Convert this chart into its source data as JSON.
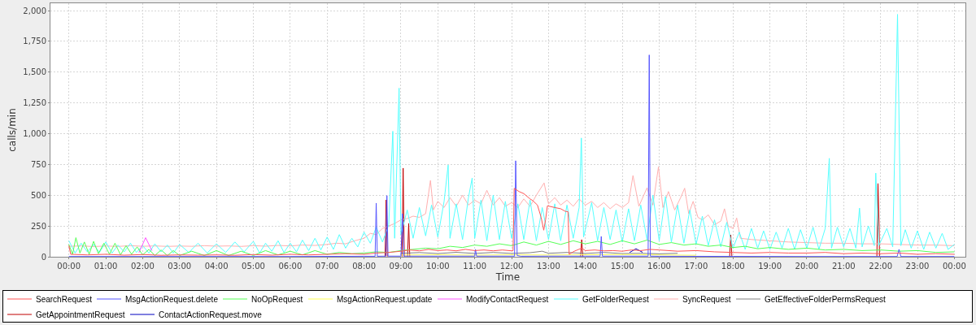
{
  "chart_data": {
    "type": "line",
    "xlabel": "Time",
    "ylabel": "calls/min",
    "xlim": [
      -0.5,
      24.3
    ],
    "xticks": [
      {
        "value": 0,
        "label": "00:00"
      },
      {
        "value": 1,
        "label": "01:00"
      },
      {
        "value": 2,
        "label": "02:00"
      },
      {
        "value": 3,
        "label": "03:00"
      },
      {
        "value": 4,
        "label": "04:00"
      },
      {
        "value": 5,
        "label": "05:00"
      },
      {
        "value": 6,
        "label": "06:00"
      },
      {
        "value": 7,
        "label": "07:00"
      },
      {
        "value": 8,
        "label": "08:00"
      },
      {
        "value": 9,
        "label": "09:00"
      },
      {
        "value": 10,
        "label": "10:00"
      },
      {
        "value": 11,
        "label": "11:00"
      },
      {
        "value": 12,
        "label": "12:00"
      },
      {
        "value": 13,
        "label": "13:00"
      },
      {
        "value": 14,
        "label": "14:00"
      },
      {
        "value": 15,
        "label": "15:00"
      },
      {
        "value": 16,
        "label": "16:00"
      },
      {
        "value": 17,
        "label": "17:00"
      },
      {
        "value": 18,
        "label": "18:00"
      },
      {
        "value": 19,
        "label": "19:00"
      },
      {
        "value": 20,
        "label": "20:00"
      },
      {
        "value": 21,
        "label": "21:00"
      },
      {
        "value": 22,
        "label": "22:00"
      },
      {
        "value": 23,
        "label": "23:00"
      },
      {
        "value": 24,
        "label": "00:00"
      }
    ],
    "ylim": [
      0,
      2060
    ],
    "yticks": [
      0,
      250,
      500,
      750,
      {
        "value": 1000,
        "label": "1,000"
      },
      {
        "value": 1250,
        "label": "1,250"
      },
      {
        "value": 1500,
        "label": "1,500"
      },
      {
        "value": 1750,
        "label": "1,750"
      },
      {
        "value": 2000,
        "label": "2,000"
      }
    ],
    "grid": true,
    "legend": "bottom",
    "series": [
      {
        "name": "SearchRequest",
        "color": "#ff5555",
        "x": [
          0,
          0.05,
          0.5,
          1,
          1.5,
          2,
          2.5,
          3,
          3.5,
          4,
          4.5,
          5,
          5.5,
          6,
          6.5,
          7,
          7.5,
          8,
          8.33,
          8.67,
          9,
          9.25,
          9.5,
          9.75,
          10,
          10.25,
          10.5,
          10.75,
          11,
          11.25,
          11.5,
          11.75,
          12,
          12.04,
          12.07,
          12.2,
          12.33,
          12.5,
          12.57,
          12.7,
          12.8,
          12.87,
          12.92,
          12.97,
          13.17,
          13.33,
          13.45,
          13.53,
          13.56,
          13.7,
          13.9,
          14,
          14.25,
          14.5,
          14.75,
          15,
          15.25,
          15.5,
          15.75,
          16,
          16.5,
          17,
          17.5,
          18,
          18.5,
          19,
          19.5,
          20,
          20.5,
          21,
          21.5,
          22,
          22.5,
          23,
          23.5,
          24
        ],
        "values": [
          90,
          20,
          15,
          20,
          13,
          18,
          12,
          15,
          13,
          15,
          12,
          18,
          13,
          20,
          15,
          20,
          25,
          20,
          30,
          35,
          45,
          55,
          48,
          60,
          50,
          55,
          48,
          60,
          50,
          55,
          48,
          55,
          48,
          50,
          556,
          530,
          513,
          470,
          457,
          420,
          320,
          216,
          300,
          414,
          400,
          390,
          370,
          365,
          20,
          45,
          70,
          50,
          55,
          48,
          50,
          45,
          55,
          50,
          60,
          55,
          45,
          50,
          40,
          35,
          30,
          35,
          30,
          30,
          35,
          25,
          30,
          25,
          30,
          20,
          25,
          20
        ]
      },
      {
        "name": "MsgActionRequest.delete",
        "color": "#5555ff",
        "x": [
          0,
          2,
          4,
          6,
          8,
          8.3,
          8.33,
          8.36,
          8.59,
          8.62,
          8.65,
          9,
          9.04,
          9.08,
          10,
          11,
          11.02,
          11.05,
          12,
          12.08,
          12.11,
          12.15,
          12.25,
          13,
          14,
          14.4,
          14.43,
          14.46,
          15,
          15.7,
          15.73,
          15.76,
          16,
          18,
          20,
          22.45,
          22.5,
          22.55,
          24
        ],
        "values": [
          2,
          2,
          2,
          2,
          4,
          4,
          436,
          4,
          5,
          497,
          5,
          5,
          350,
          5,
          5,
          5,
          60,
          5,
          5,
          5,
          780,
          10,
          4,
          5,
          5,
          5,
          165,
          5,
          5,
          5,
          1640,
          5,
          4,
          3,
          2,
          2,
          60,
          2,
          2
        ]
      },
      {
        "name": "NoOpRequest",
        "color": "#55ff55",
        "x": [
          0,
          0.1,
          0.19,
          0.3,
          0.42,
          0.55,
          0.67,
          0.8,
          0.95,
          1.1,
          1.25,
          1.4,
          1.55,
          1.7,
          1.85,
          2,
          2.17,
          2.33,
          2.5,
          2.67,
          2.83,
          3,
          3.33,
          3.67,
          4,
          4.33,
          4.67,
          5,
          5.33,
          5.67,
          6,
          6.33,
          6.67,
          7,
          7.33,
          7.67,
          8,
          8.33,
          8.67,
          9,
          9.33,
          9.67,
          10,
          10.33,
          10.67,
          11,
          11.33,
          11.67,
          12,
          12.33,
          12.67,
          13,
          13.33,
          13.67,
          14,
          14.33,
          14.67,
          15,
          15.33,
          15.67,
          16,
          16.33,
          16.67,
          17,
          17.33,
          17.67,
          18,
          18.33,
          18.67,
          19,
          19.5,
          20,
          20.5,
          21,
          21.5,
          22,
          22.5,
          23,
          23.5,
          24
        ],
        "values": [
          100,
          20,
          155,
          30,
          120,
          20,
          125,
          25,
          110,
          20,
          110,
          15,
          90,
          20,
          80,
          15,
          60,
          10,
          55,
          10,
          50,
          10,
          45,
          10,
          50,
          10,
          45,
          10,
          50,
          15,
          45,
          15,
          50,
          20,
          35,
          25,
          30,
          40,
          35,
          50,
          60,
          70,
          65,
          85,
          75,
          95,
          85,
          105,
          90,
          120,
          95,
          125,
          100,
          130,
          105,
          125,
          100,
          130,
          105,
          135,
          100,
          115,
          95,
          105,
          85,
          95,
          75,
          85,
          65,
          75,
          60,
          70,
          55,
          60,
          50,
          55,
          45,
          50,
          35,
          40
        ]
      },
      {
        "name": "MsgActionRequest.update",
        "color": "#ffff55",
        "x": [
          9,
          10,
          11,
          12,
          13,
          14,
          15,
          16,
          17
        ],
        "values": [
          14,
          16,
          13,
          16,
          14,
          16,
          18,
          15,
          12
        ]
      },
      {
        "name": "ModifyContactRequest",
        "color": "#ff55ff",
        "x": [
          1.9,
          2.08,
          2.25
        ],
        "values": [
          34,
          155,
          50
        ]
      },
      {
        "name": "GetFolderRequest",
        "color": "#55ffff",
        "x": [
          0,
          0.17,
          0.33,
          0.5,
          0.67,
          0.83,
          1,
          1.17,
          1.33,
          1.5,
          1.67,
          1.83,
          2,
          2.17,
          2.33,
          2.5,
          2.67,
          2.83,
          3,
          3.25,
          3.5,
          3.75,
          4,
          4.25,
          4.5,
          4.75,
          5,
          5.17,
          5.33,
          5.5,
          5.67,
          5.83,
          6,
          6.17,
          6.33,
          6.5,
          6.67,
          6.83,
          7,
          7.17,
          7.33,
          7.5,
          7.67,
          7.83,
          8,
          8.17,
          8.33,
          8.5,
          8.67,
          8.78,
          8.83,
          8.95,
          9,
          9.17,
          9.33,
          9.5,
          9.67,
          9.83,
          10,
          10.17,
          10.28,
          10.33,
          10.5,
          10.67,
          10.83,
          10.93,
          11,
          11.17,
          11.33,
          11.5,
          11.67,
          11.83,
          12,
          12.17,
          12.33,
          12.5,
          12.67,
          12.83,
          13,
          13.17,
          13.33,
          13.5,
          13.67,
          13.83,
          13.89,
          13.95,
          14.17,
          14.33,
          14.5,
          14.67,
          14.83,
          15,
          15.17,
          15.33,
          15.5,
          15.67,
          15.83,
          16,
          16.17,
          16.33,
          16.5,
          16.67,
          16.83,
          17,
          17.17,
          17.33,
          17.5,
          17.67,
          17.83,
          18,
          18.17,
          18.33,
          18.5,
          18.67,
          18.83,
          19,
          19.17,
          19.33,
          19.5,
          19.67,
          19.83,
          20,
          20.17,
          20.33,
          20.5,
          20.61,
          20.67,
          20.83,
          21,
          21.17,
          21.33,
          21.43,
          21.5,
          21.67,
          21.83,
          21.87,
          21.95,
          22.17,
          22.33,
          22.46,
          22.55,
          22.67,
          22.83,
          23,
          23.17,
          23.33,
          23.5,
          23.67,
          23.83,
          24
        ],
        "values": [
          130,
          30,
          110,
          40,
          100,
          35,
          120,
          30,
          95,
          40,
          110,
          35,
          90,
          30,
          105,
          40,
          95,
          30,
          100,
          35,
          110,
          30,
          105,
          35,
          120,
          40,
          125,
          30,
          110,
          45,
          130,
          35,
          110,
          40,
          135,
          50,
          150,
          55,
          160,
          60,
          180,
          70,
          150,
          80,
          200,
          110,
          240,
          120,
          260,
          1020,
          150,
          1370,
          180,
          380,
          150,
          400,
          170,
          420,
          160,
          450,
          745,
          150,
          430,
          140,
          480,
          640,
          150,
          460,
          130,
          500,
          140,
          450,
          150,
          430,
          140,
          460,
          130,
          400,
          140,
          430,
          130,
          420,
          150,
          400,
          965,
          160,
          440,
          130,
          400,
          140,
          380,
          120,
          390,
          130,
          420,
          140,
          500,
          130,
          490,
          120,
          420,
          110,
          380,
          100,
          330,
          90,
          300,
          80,
          280,
          70,
          200,
          60,
          230,
          70,
          210,
          60,
          200,
          70,
          230,
          60,
          220,
          70,
          240,
          60,
          230,
          800,
          70,
          240,
          80,
          230,
          70,
          395,
          80,
          250,
          90,
          680,
          90,
          230,
          80,
          1970,
          90,
          220,
          70,
          210,
          60,
          200,
          70,
          190,
          60,
          100
        ]
      },
      {
        "name": "SyncRequest",
        "color": "#ffafaf",
        "x": [
          0,
          0.33,
          0.67,
          1,
          1.33,
          1.67,
          2,
          2.33,
          2.67,
          3,
          3.33,
          3.67,
          4,
          4.33,
          4.67,
          5,
          5.33,
          5.67,
          6,
          6.33,
          6.67,
          7,
          7.25,
          7.5,
          7.75,
          8,
          8.17,
          8.33,
          8.5,
          8.67,
          8.83,
          9,
          9.17,
          9.33,
          9.5,
          9.67,
          9.8,
          9.88,
          10,
          10.17,
          10.33,
          10.5,
          10.67,
          10.83,
          11,
          11.17,
          11.33,
          11.5,
          11.67,
          11.83,
          12,
          12.17,
          12.33,
          12.5,
          12.67,
          12.88,
          13,
          13.17,
          13.33,
          13.5,
          13.67,
          13.83,
          14,
          14.17,
          14.33,
          14.5,
          14.67,
          14.83,
          15,
          15.17,
          15.29,
          15.45,
          15.67,
          15.83,
          15.98,
          16.1,
          16.25,
          16.42,
          16.58,
          16.69,
          16.8,
          16.92,
          17.05,
          17.17,
          17.33,
          17.5,
          17.67,
          17.77,
          17.87,
          18,
          18.1,
          18.2,
          18.5,
          19,
          19.5,
          20,
          20.5,
          21,
          21.5,
          22,
          22.5,
          23,
          23.5,
          24
        ],
        "values": [
          85,
          88,
          83,
          87,
          84,
          90,
          85,
          88,
          84,
          87,
          85,
          90,
          86,
          88,
          84,
          90,
          86,
          92,
          88,
          95,
          92,
          100,
          110,
          105,
          130,
          150,
          190,
          180,
          230,
          250,
          270,
          300,
          310,
          330,
          320,
          350,
          620,
          380,
          450,
          400,
          480,
          410,
          500,
          420,
          460,
          430,
          540,
          420,
          480,
          410,
          440,
          400,
          470,
          410,
          500,
          600,
          430,
          480,
          420,
          460,
          410,
          470,
          420,
          450,
          400,
          440,
          390,
          430,
          400,
          440,
          660,
          410,
          560,
          420,
          730,
          400,
          530,
          380,
          480,
          557,
          350,
          450,
          320,
          300,
          340,
          260,
          290,
          390,
          250,
          230,
          315,
          150,
          140,
          130,
          120,
          115,
          110,
          110,
          105,
          105,
          100,
          95,
          95,
          90
        ]
      },
      {
        "name": "GetEffectiveFolderPermsRequest",
        "color": "#808080",
        "x": [
          9,
          9.5,
          10,
          10.5,
          11,
          11.5,
          12,
          12.5,
          12.83,
          13,
          13.5,
          14,
          14.5,
          15,
          15.5,
          16,
          16.5
        ],
        "values": [
          28,
          34,
          26,
          36,
          27,
          35,
          27,
          33,
          45,
          28,
          35,
          27,
          35,
          26,
          28,
          24,
          28
        ]
      },
      {
        "name": "GetAppointmentRequest",
        "color": "#c00000",
        "x": [
          8.57,
          8.6,
          8.63,
          8.8,
          9.03,
          9.06,
          9.09,
          9.15,
          9.18,
          9.21,
          9.24,
          11,
          13.87,
          13.9,
          13.93,
          16,
          17.91,
          17.94,
          17.97,
          20,
          21.9,
          21.93,
          21.96,
          21.97
        ],
        "values": [
          2,
          462,
          2,
          null,
          2,
          720,
          2,
          null,
          2,
          271,
          2,
          null,
          2,
          139,
          2,
          null,
          2,
          178,
          2,
          null,
          2,
          595,
          240,
          2
        ]
      },
      {
        "name": "ContactActionRequest.move",
        "color": "#0000c0",
        "x": [
          15.2,
          15.37,
          15.55
        ],
        "values": [
          35,
          65,
          36
        ]
      }
    ]
  }
}
